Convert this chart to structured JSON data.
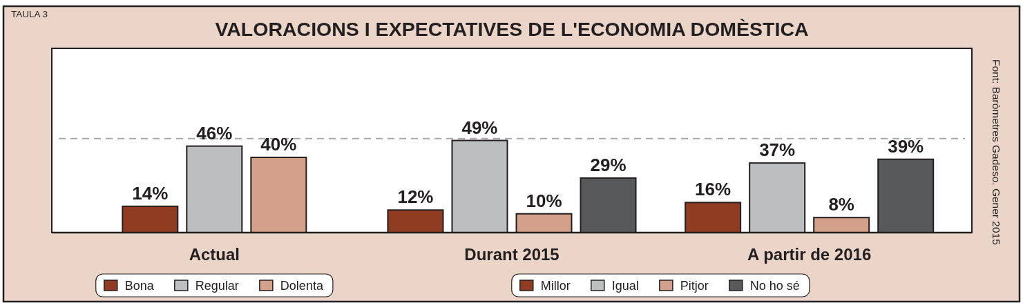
{
  "chart_data": {
    "type": "bar",
    "title": "VALORACIONS I EXPECTATIVES DE L'ECONOMIA DOMÈSTICA",
    "annotations": [
      "TAULA 3",
      "Font: Baròmetres Gadeso. Gener 2015"
    ],
    "categories": [
      "Actual",
      "Durant 2015",
      "A partir de 2016"
    ],
    "series": [
      {
        "name": "Bona",
        "color": "#8f3c22",
        "values": [
          14,
          null,
          null
        ],
        "value_labels": [
          "14%",
          null,
          null
        ]
      },
      {
        "name": "Regular",
        "color": "#bcbec0",
        "values": [
          46,
          null,
          null
        ],
        "value_labels": [
          "46%",
          null,
          null
        ]
      },
      {
        "name": "Dolenta",
        "color": "#d3a18b",
        "values": [
          40,
          null,
          null
        ],
        "value_labels": [
          "40%",
          null,
          null
        ]
      },
      {
        "name": "Millor",
        "color": "#8f3c22",
        "values": [
          null,
          12,
          16
        ],
        "value_labels": [
          null,
          "12%",
          "16%"
        ]
      },
      {
        "name": "Igual",
        "color": "#bcbec0",
        "values": [
          null,
          49,
          37
        ],
        "value_labels": [
          null,
          "49%",
          "37%"
        ]
      },
      {
        "name": "Pitjor",
        "color": "#d3a18b",
        "values": [
          null,
          10,
          8
        ],
        "value_labels": [
          null,
          "10%",
          "8%"
        ]
      },
      {
        "name": "No ho sé",
        "color": "#58595b",
        "values": [
          null,
          29,
          39
        ],
        "value_labels": [
          null,
          "29%",
          "39%"
        ]
      }
    ],
    "legend": "bottom",
    "ref_lines": [
      {
        "axis": "y",
        "value": 50,
        "color": "#a7a9ac",
        "line_style": "dashed"
      }
    ]
  }
}
